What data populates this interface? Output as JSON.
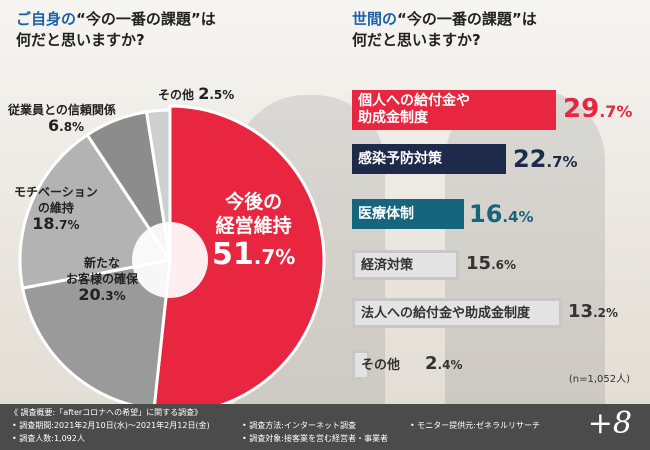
{
  "left_title": {
    "highlight": "ご自身の",
    "rest": "“今の一番の課題”は",
    "line2": "何だと思いますか?"
  },
  "right_title": {
    "highlight": "世間の",
    "rest": "“今の一番の課題”は",
    "line2": "何だと思いますか?"
  },
  "chart_data": [
    {
      "type": "pie",
      "slices": [
        {
          "label": "今後の経営維持",
          "value": 51.7,
          "color": "#e8263f"
        },
        {
          "label": "新たなお客様の確保",
          "value": 20.3,
          "color": "#9a9a9a"
        },
        {
          "label": "モチベーションの維持",
          "value": 18.7,
          "color": "#b3b3b3"
        },
        {
          "label": "従業員との信頼関係",
          "value": 6.8,
          "color": "#8c8c8c"
        },
        {
          "label": "その他",
          "value": 2.5,
          "color": "#cfcfcf"
        }
      ]
    },
    {
      "type": "bar",
      "categories": [
        "個人への給付金や助成金制度",
        "感染予防対策",
        "医療体制",
        "経済対策",
        "法人への給付金や助成金制度",
        "その他"
      ],
      "values": [
        29.7,
        22.7,
        16.4,
        15.6,
        13.2,
        2.4
      ],
      "note": "(n=1,052人)"
    }
  ],
  "pie_labels": {
    "main": {
      "line1": "今後の",
      "line2": "経営維持",
      "pct_int": "51",
      "pct_dec": ".7%"
    },
    "customers": {
      "line1": "新たな",
      "line2": "お客様の確保",
      "pct_int": "20",
      "pct_dec": ".3%"
    },
    "motivation": {
      "line1": "モチベーション",
      "line2": "の維持",
      "pct_int": "18",
      "pct_dec": ".7%"
    },
    "trust": {
      "line1": "従業員との信頼関係",
      "pct_int": "6",
      "pct_dec": ".8%"
    },
    "other": {
      "line1": "その他",
      "pct_int": "2",
      "pct_dec": ".5%"
    }
  },
  "bars": [
    {
      "label1": "個人への給付金や",
      "label2": "助成金制度",
      "pct_int": "29",
      "pct_dec": ".7%"
    },
    {
      "label1": "感染予防対策",
      "pct_int": "22",
      "pct_dec": ".7%"
    },
    {
      "label1": "医療体制",
      "pct_int": "16",
      "pct_dec": ".4%"
    },
    {
      "label1": "経済対策",
      "pct_int": "15",
      "pct_dec": ".6%"
    },
    {
      "label1": "法人への給付金や助成金制度",
      "pct_int": "13",
      "pct_dec": ".2%"
    },
    {
      "label1": "その他",
      "pct_int": "2",
      "pct_dec": ".4%"
    }
  ],
  "footer": {
    "overview": "《 調査概要:「afterコロナへの希望」に関する調査》",
    "period": "• 調査期間:2021年2月10日(水)〜2021年2月12日(金)",
    "count": "• 調査人数:1,092人",
    "method": "• 調査方法:インターネット調査",
    "target": "• 調査対象:接客業を営む経営者・事業者",
    "monitor": "• モニター提供元:ゼネラルリサーチ",
    "brand": "+8"
  },
  "colors": {
    "red": "#e8263f",
    "navy": "#1d2a4a",
    "teal": "#16657e",
    "gray": "#bdbdbd"
  }
}
